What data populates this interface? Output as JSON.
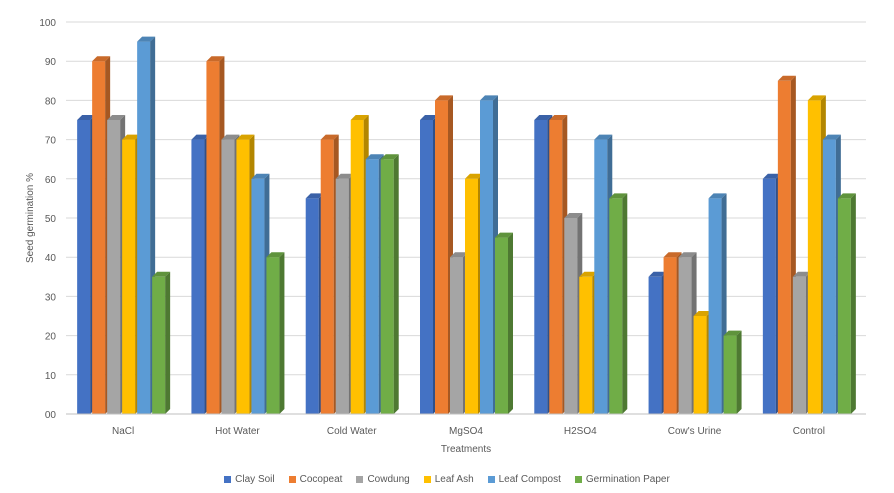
{
  "chart_data": {
    "type": "bar",
    "style": "3d-clustered-column",
    "title": "",
    "xlabel": "Treatments",
    "ylabel": "Seed germination %",
    "ylim": [
      0,
      100
    ],
    "ytick_labels": [
      "00",
      "10",
      "20",
      "30",
      "40",
      "50",
      "60",
      "70",
      "80",
      "90",
      "100"
    ],
    "grid": true,
    "legend_position": "bottom",
    "categories": [
      "NaCl",
      "Hot Water",
      "Cold Water",
      "MgSO4",
      "H2SO4",
      "Cow's Urine",
      "Control"
    ],
    "series": [
      {
        "name": "Clay Soil",
        "color": "#4472C4",
        "values": [
          75,
          70,
          55,
          75,
          75,
          35,
          60
        ]
      },
      {
        "name": "Cocopeat",
        "color": "#ED7D31",
        "values": [
          90,
          90,
          70,
          80,
          75,
          40,
          85
        ]
      },
      {
        "name": "Cowdung",
        "color": "#A5A5A5",
        "values": [
          75,
          70,
          60,
          40,
          50,
          40,
          35
        ]
      },
      {
        "name": "Leaf Ash",
        "color": "#FFC000",
        "values": [
          70,
          70,
          75,
          60,
          35,
          25,
          80
        ]
      },
      {
        "name": "Leaf Compost",
        "color": "#5B9BD5",
        "values": [
          95,
          60,
          65,
          80,
          70,
          55,
          70
        ]
      },
      {
        "name": "Germination Paper",
        "color": "#70AD47",
        "values": [
          35,
          40,
          65,
          45,
          55,
          20,
          55
        ]
      }
    ]
  }
}
